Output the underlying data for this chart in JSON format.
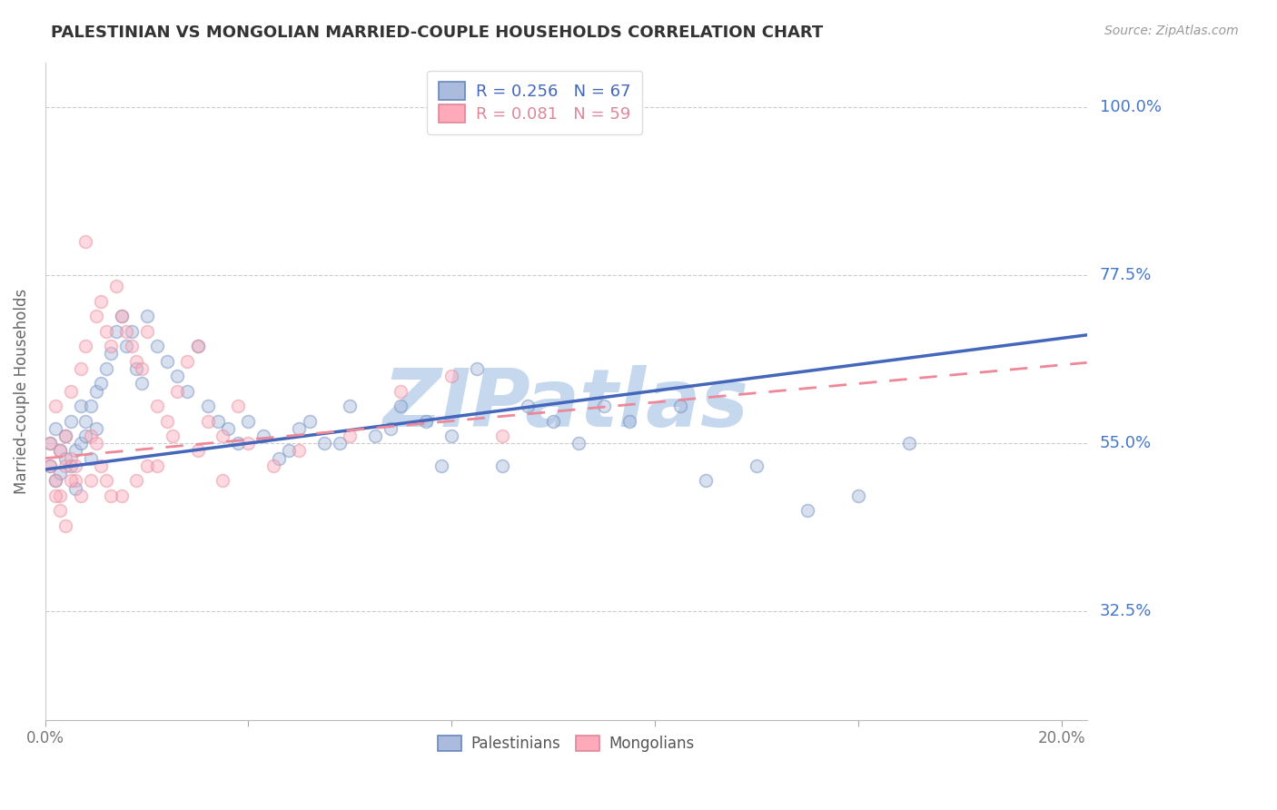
{
  "title": "PALESTINIAN VS MONGOLIAN MARRIED-COUPLE HOUSEHOLDS CORRELATION CHART",
  "source": "Source: ZipAtlas.com",
  "ylabel": "Married-couple Households",
  "xlim": [
    0.0,
    0.205
  ],
  "ylim": [
    0.18,
    1.06
  ],
  "yticks": [
    0.325,
    0.55,
    0.775,
    1.0
  ],
  "ytick_labels": [
    "32.5%",
    "55.0%",
    "77.5%",
    "100.0%"
  ],
  "xticks": [
    0.0,
    0.04,
    0.08,
    0.12,
    0.16,
    0.2
  ],
  "xtick_labels": [
    "0.0%",
    "",
    "",
    "",
    "",
    "20.0%"
  ],
  "blue_R": 0.256,
  "blue_N": 67,
  "pink_R": 0.081,
  "pink_N": 59,
  "blue_face_color": "#AABBDD",
  "blue_edge_color": "#6688BB",
  "pink_face_color": "#FFAABB",
  "pink_edge_color": "#DD8899",
  "blue_line_color": "#4466BB",
  "pink_line_color": "#EE8899",
  "legend_label_blue": "Palestinians",
  "legend_label_pink": "Mongolians",
  "watermark": "ZIPatlas",
  "watermark_color": "#C5D8EE",
  "blue_scatter_x": [
    0.001,
    0.001,
    0.002,
    0.002,
    0.003,
    0.003,
    0.004,
    0.004,
    0.005,
    0.005,
    0.006,
    0.006,
    0.007,
    0.007,
    0.008,
    0.008,
    0.009,
    0.009,
    0.01,
    0.01,
    0.011,
    0.012,
    0.013,
    0.014,
    0.015,
    0.016,
    0.017,
    0.018,
    0.019,
    0.02,
    0.022,
    0.024,
    0.026,
    0.028,
    0.03,
    0.032,
    0.034,
    0.036,
    0.038,
    0.04,
    0.043,
    0.046,
    0.05,
    0.055,
    0.06,
    0.065,
    0.07,
    0.075,
    0.08,
    0.09,
    0.1,
    0.11,
    0.13,
    0.15,
    0.16,
    0.17,
    0.048,
    0.052,
    0.058,
    0.068,
    0.078,
    0.085,
    0.095,
    0.105,
    0.115,
    0.125,
    0.14
  ],
  "blue_scatter_y": [
    0.52,
    0.55,
    0.5,
    0.57,
    0.51,
    0.54,
    0.53,
    0.56,
    0.52,
    0.58,
    0.49,
    0.54,
    0.6,
    0.55,
    0.56,
    0.58,
    0.53,
    0.6,
    0.57,
    0.62,
    0.63,
    0.65,
    0.67,
    0.7,
    0.72,
    0.68,
    0.7,
    0.65,
    0.63,
    0.72,
    0.68,
    0.66,
    0.64,
    0.62,
    0.68,
    0.6,
    0.58,
    0.57,
    0.55,
    0.58,
    0.56,
    0.53,
    0.57,
    0.55,
    0.6,
    0.56,
    0.6,
    0.58,
    0.56,
    0.52,
    0.58,
    0.6,
    0.5,
    0.46,
    0.48,
    0.55,
    0.54,
    0.58,
    0.55,
    0.57,
    0.52,
    0.65,
    0.6,
    0.55,
    0.58,
    0.6,
    0.52
  ],
  "pink_scatter_x": [
    0.001,
    0.001,
    0.002,
    0.002,
    0.003,
    0.003,
    0.004,
    0.004,
    0.005,
    0.005,
    0.006,
    0.007,
    0.008,
    0.009,
    0.01,
    0.011,
    0.012,
    0.013,
    0.014,
    0.015,
    0.016,
    0.017,
    0.018,
    0.019,
    0.02,
    0.022,
    0.024,
    0.026,
    0.028,
    0.03,
    0.032,
    0.035,
    0.038,
    0.04,
    0.045,
    0.05,
    0.06,
    0.07,
    0.08,
    0.09,
    0.01,
    0.012,
    0.015,
    0.018,
    0.02,
    0.025,
    0.03,
    0.035,
    0.008,
    0.022,
    0.002,
    0.003,
    0.004,
    0.005,
    0.006,
    0.007,
    0.009,
    0.011,
    0.013
  ],
  "pink_scatter_y": [
    0.52,
    0.55,
    0.5,
    0.6,
    0.48,
    0.54,
    0.56,
    0.52,
    0.53,
    0.62,
    0.5,
    0.65,
    0.68,
    0.56,
    0.72,
    0.74,
    0.7,
    0.68,
    0.76,
    0.72,
    0.7,
    0.68,
    0.66,
    0.65,
    0.7,
    0.6,
    0.58,
    0.62,
    0.66,
    0.68,
    0.58,
    0.56,
    0.6,
    0.55,
    0.52,
    0.54,
    0.56,
    0.62,
    0.64,
    0.56,
    0.55,
    0.5,
    0.48,
    0.5,
    0.52,
    0.56,
    0.54,
    0.5,
    0.82,
    0.52,
    0.48,
    0.46,
    0.44,
    0.5,
    0.52,
    0.48,
    0.5,
    0.52,
    0.48
  ],
  "blue_trend_x": [
    0.0,
    0.205
  ],
  "blue_trend_y": [
    0.515,
    0.695
  ],
  "pink_trend_x": [
    0.0,
    0.205
  ],
  "pink_trend_y": [
    0.53,
    0.658
  ],
  "background_color": "#FFFFFF",
  "grid_color": "#CCCCCC",
  "title_color": "#333333",
  "right_label_color": "#4477CC",
  "marker_size": 100,
  "marker_alpha": 0.45,
  "marker_linewidth": 1.2
}
